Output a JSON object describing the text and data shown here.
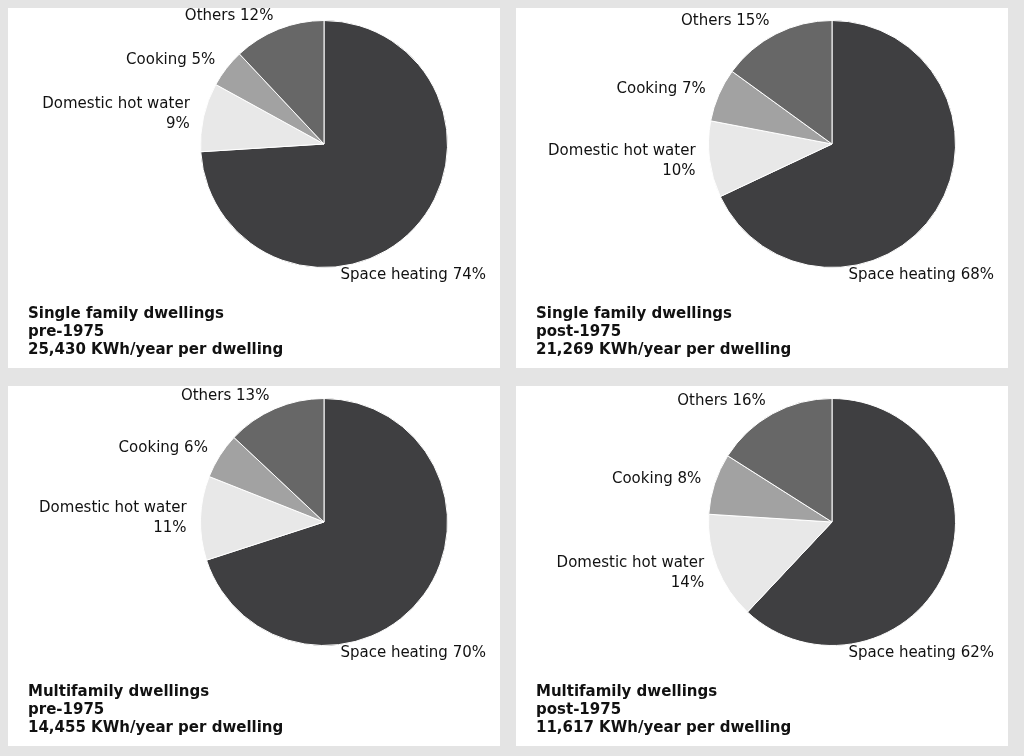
{
  "chart_data": [
    {
      "type": "pie",
      "title": "Single family dwellings pre-1975",
      "subtitle": "25,430 KWh/year per dwelling",
      "categories": [
        "Space heating",
        "Domestic hot water",
        "Cooking",
        "Others"
      ],
      "values": [
        74,
        9,
        5,
        12
      ],
      "value_labels": [
        "74%",
        "9%",
        "5%",
        "12%"
      ],
      "colors": [
        "#3f3f41",
        "#e8e8e8",
        "#a2a2a2",
        "#676767"
      ],
      "legend": false
    },
    {
      "type": "pie",
      "title": "Single family dwellings post-1975",
      "subtitle": "21,269 KWh/year per dwelling",
      "categories": [
        "Space heating",
        "Domestic hot water",
        "Cooking",
        "Others"
      ],
      "values": [
        68,
        10,
        7,
        15
      ],
      "value_labels": [
        "68%",
        "10%",
        "7%",
        "15%"
      ],
      "colors": [
        "#3f3f41",
        "#e8e8e8",
        "#a2a2a2",
        "#676767"
      ],
      "legend": false
    },
    {
      "type": "pie",
      "title": "Multifamily dwellings pre-1975",
      "subtitle": "14,455 KWh/year per dwelling",
      "categories": [
        "Space heating",
        "Domestic hot water",
        "Cooking",
        "Others"
      ],
      "values": [
        70,
        11,
        6,
        13
      ],
      "value_labels": [
        "70%",
        "11%",
        "6%",
        "13%"
      ],
      "colors": [
        "#3f3f41",
        "#e8e8e8",
        "#a2a2a2",
        "#676767"
      ],
      "legend": false
    },
    {
      "type": "pie",
      "title": "Multifamily dwellings post-1975",
      "subtitle": "11,617 KWh/year per dwelling",
      "categories": [
        "Space heating",
        "Domestic hot water",
        "Cooking",
        "Others"
      ],
      "values": [
        62,
        14,
        8,
        16
      ],
      "value_labels": [
        "62%",
        "14%",
        "8%",
        "16%"
      ],
      "colors": [
        "#3f3f41",
        "#e8e8e8",
        "#a2a2a2",
        "#676767"
      ],
      "legend": false
    }
  ]
}
